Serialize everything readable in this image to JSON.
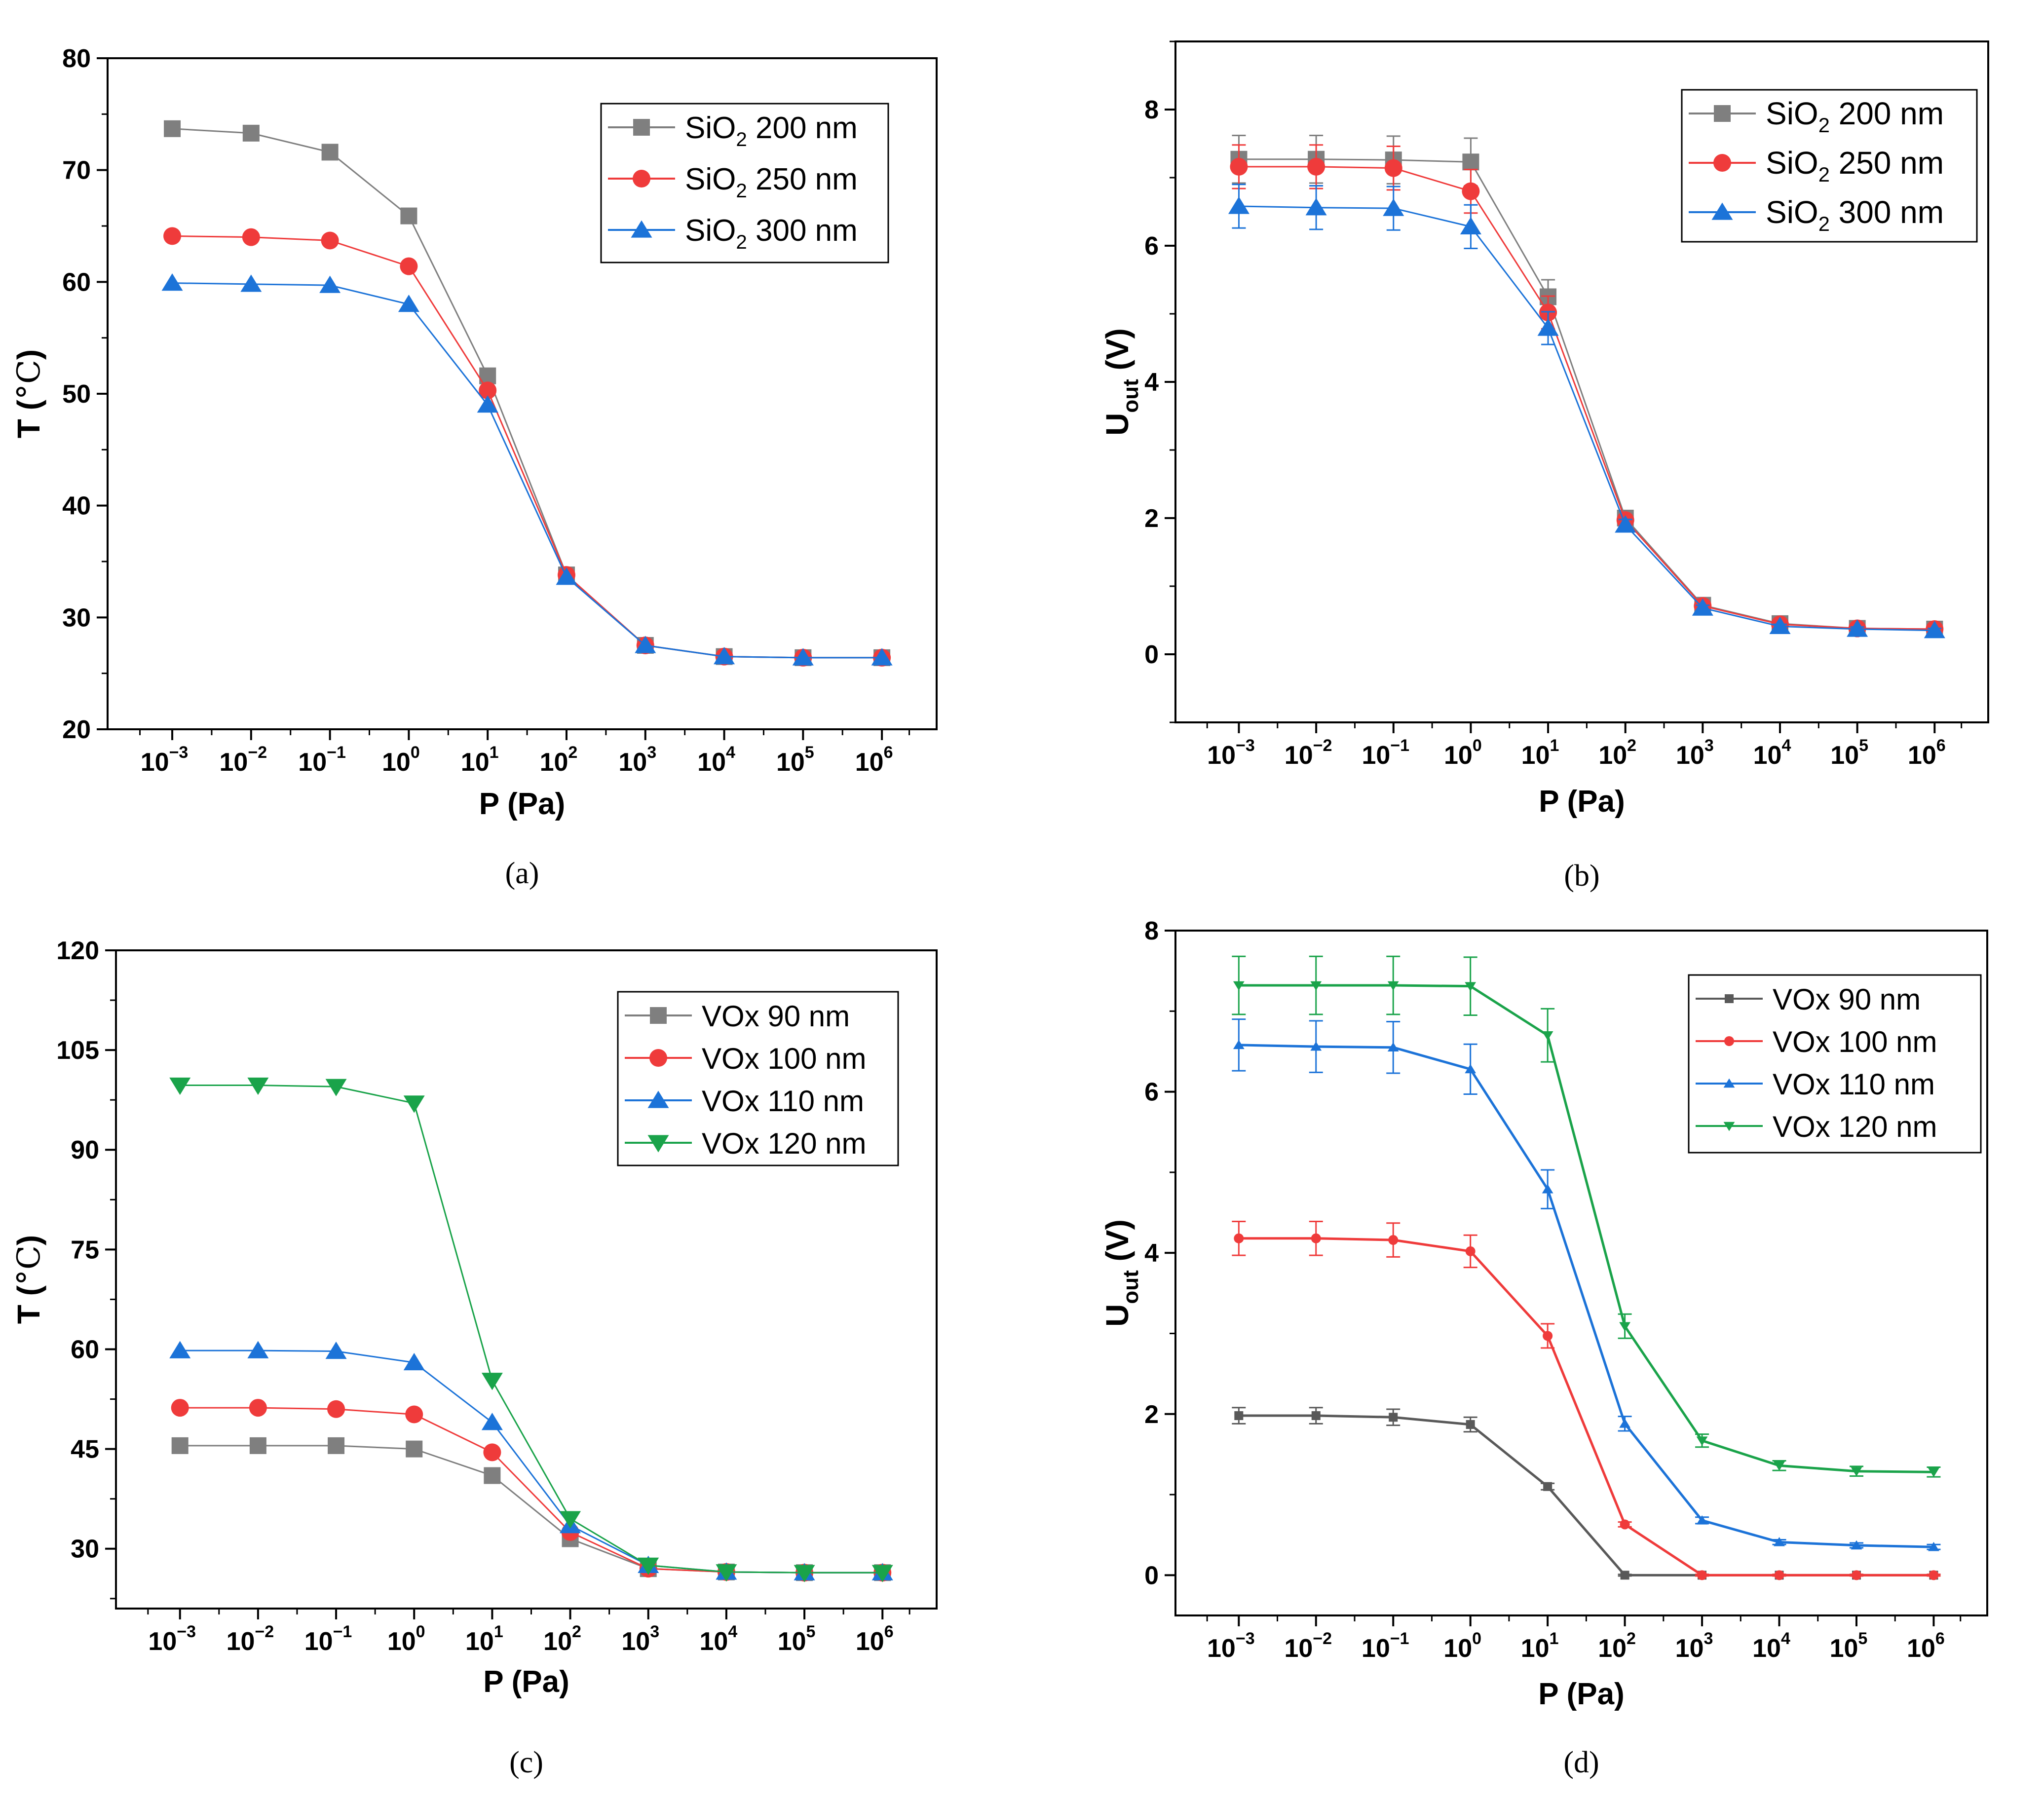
{
  "x_ticks": [
    "10",
    "10",
    "10",
    "10",
    "10",
    "10",
    "10",
    "10",
    "10",
    "10"
  ],
  "x_exponents": [
    "−3",
    "−2",
    "−1",
    "0",
    "1",
    "2",
    "3",
    "4",
    "5",
    "6"
  ],
  "chart_data": [
    {
      "id": "a",
      "type": "line",
      "caption": "(a)",
      "xlabel": "P (Pa)",
      "ylabel": "T (℃)",
      "ylabel_main": "T (",
      "ylabel_unit": "°C",
      "ylabel_close": ")",
      "ylim": [
        20,
        80
      ],
      "yticks": [
        20,
        30,
        40,
        50,
        60,
        70,
        80
      ],
      "x_log10": [
        -3,
        -2,
        -1,
        0,
        1,
        2,
        3,
        4,
        5,
        6
      ],
      "series": [
        {
          "name": "SiO2 200 nm",
          "label_main": "SiO",
          "label_sub": "2",
          "label_rest": " 200 nm",
          "color": "#7f7f7f",
          "marker": "square",
          "values": [
            73.7,
            73.3,
            71.6,
            65.9,
            51.6,
            33.8,
            27.5,
            26.5,
            26.4,
            26.4
          ]
        },
        {
          "name": "SiO2 250 nm",
          "label_main": "SiO",
          "label_sub": "2",
          "label_rest": " 250 nm",
          "color": "#ef3b3b",
          "marker": "circle",
          "values": [
            64.1,
            64.0,
            63.7,
            61.4,
            50.3,
            33.8,
            27.5,
            26.5,
            26.4,
            26.4
          ]
        },
        {
          "name": "SiO2 300 nm",
          "label_main": "SiO",
          "label_sub": "2",
          "label_rest": " 300 nm",
          "color": "#1c73d8",
          "marker": "triangle-up",
          "values": [
            59.9,
            59.8,
            59.7,
            58.0,
            49.0,
            33.6,
            27.5,
            26.5,
            26.4,
            26.4
          ]
        }
      ]
    },
    {
      "id": "b",
      "type": "line",
      "caption": "(b)",
      "xlabel": "P (Pa)",
      "ylabel": "Uout (V)",
      "ylabel_main": "U",
      "ylabel_sub": "out",
      "ylabel_rest": " (V)",
      "ylim": [
        -1,
        9
      ],
      "yticks": [
        0,
        2,
        4,
        6,
        8
      ],
      "x_log10": [
        -3,
        -2,
        -1,
        0,
        1,
        2,
        3,
        4,
        5,
        6
      ],
      "series": [
        {
          "name": "SiO2 200 nm",
          "label_main": "SiO",
          "label_sub": "2",
          "label_rest": " 200 nm",
          "color": "#7f7f7f",
          "marker": "square",
          "values": [
            7.27,
            7.27,
            7.26,
            7.23,
            5.25,
            2.0,
            0.72,
            0.45,
            0.38,
            0.37
          ],
          "errors": [
            0.35,
            0.35,
            0.35,
            0.35,
            0.25,
            0.08,
            0.04,
            0.03,
            0.03,
            0.03
          ]
        },
        {
          "name": "SiO2 250 nm",
          "label_main": "SiO",
          "label_sub": "2",
          "label_rest": " 250 nm",
          "color": "#ef3b3b",
          "marker": "circle",
          "values": [
            7.16,
            7.16,
            7.14,
            6.8,
            5.02,
            1.97,
            0.71,
            0.44,
            0.38,
            0.37
          ],
          "errors": [
            0.32,
            0.32,
            0.32,
            0.32,
            0.24,
            0.08,
            0.04,
            0.03,
            0.03,
            0.03
          ]
        },
        {
          "name": "SiO2 300 nm",
          "label_main": "SiO",
          "label_sub": "2",
          "label_rest": " 300 nm",
          "color": "#1c73d8",
          "marker": "triangle-up",
          "values": [
            6.58,
            6.56,
            6.55,
            6.28,
            4.79,
            1.9,
            0.68,
            0.41,
            0.37,
            0.35
          ],
          "errors": [
            0.32,
            0.32,
            0.32,
            0.32,
            0.24,
            0.08,
            0.04,
            0.03,
            0.03,
            0.03
          ]
        }
      ]
    },
    {
      "id": "c",
      "type": "line",
      "caption": "(c)",
      "xlabel": "P (Pa)",
      "ylabel": "T (℃)",
      "ylabel_main": "T (",
      "ylabel_unit": "°C",
      "ylabel_close": ")",
      "ylim": [
        21,
        120
      ],
      "yticks": [
        30,
        45,
        60,
        75,
        90,
        105,
        120
      ],
      "x_log10": [
        -3,
        -2,
        -1,
        0,
        1,
        2,
        3,
        4,
        5,
        6
      ],
      "series": [
        {
          "name": "VOx 90 nm",
          "label_main": "VOx 90 nm",
          "color": "#7f7f7f",
          "marker": "square",
          "values": [
            45.5,
            45.5,
            45.5,
            45.0,
            41.0,
            31.5,
            27.0,
            26.5,
            26.4,
            26.4
          ]
        },
        {
          "name": "VOx 100 nm",
          "label_main": "VOx 100 nm",
          "color": "#ef3b3b",
          "marker": "circle",
          "values": [
            51.2,
            51.2,
            51.0,
            50.2,
            44.5,
            32.5,
            27.0,
            26.5,
            26.4,
            26.4
          ]
        },
        {
          "name": "VOx 110 nm",
          "label_main": "VOx 110 nm",
          "color": "#1c73d8",
          "marker": "triangle-up",
          "values": [
            59.8,
            59.8,
            59.7,
            58.0,
            49.0,
            33.5,
            27.5,
            26.5,
            26.4,
            26.4
          ]
        },
        {
          "name": "VOx 120 nm",
          "label_main": "VOx 120 nm",
          "color": "#1aa34a",
          "marker": "triangle-down",
          "values": [
            99.7,
            99.7,
            99.5,
            97.0,
            55.3,
            34.5,
            27.5,
            26.5,
            26.4,
            26.4
          ]
        }
      ]
    },
    {
      "id": "d",
      "type": "line",
      "caption": "(d)",
      "xlabel": "P (Pa)",
      "ylabel": "Uout (V)",
      "ylabel_main": "U",
      "ylabel_sub": "out",
      "ylabel_rest": " (V)",
      "ylim": [
        -0.5,
        8
      ],
      "yticks": [
        0,
        2,
        4,
        6,
        8
      ],
      "x_log10": [
        -3,
        -2,
        -1,
        0,
        1,
        2,
        3,
        4,
        5,
        6
      ],
      "series": [
        {
          "name": "VOx 90 nm",
          "label_main": "VOx 90 nm",
          "color": "#595959",
          "marker": "small-square",
          "values": [
            1.98,
            1.98,
            1.96,
            1.87,
            1.1,
            0.0,
            0.0,
            0.0,
            0.0,
            0.0
          ],
          "errors": [
            0.1,
            0.1,
            0.1,
            0.09,
            0.04,
            0.01,
            0.01,
            0.01,
            0.01,
            0.01
          ]
        },
        {
          "name": "VOx 100 nm",
          "label_main": "VOx 100 nm",
          "color": "#ef3b3b",
          "marker": "small-circle",
          "values": [
            4.18,
            4.18,
            4.16,
            4.02,
            2.97,
            0.63,
            0.0,
            0.0,
            0.0,
            0.0
          ],
          "errors": [
            0.21,
            0.21,
            0.21,
            0.2,
            0.15,
            0.03,
            0.01,
            0.01,
            0.01,
            0.01
          ]
        },
        {
          "name": "VOx 110 nm",
          "label_main": "VOx 110 nm",
          "color": "#1c73d8",
          "marker": "small-triangle-up",
          "values": [
            6.58,
            6.56,
            6.55,
            6.28,
            4.79,
            1.88,
            0.68,
            0.41,
            0.37,
            0.35
          ],
          "errors": [
            0.32,
            0.32,
            0.32,
            0.31,
            0.24,
            0.09,
            0.04,
            0.03,
            0.03,
            0.03
          ]
        },
        {
          "name": "VOx 120 nm",
          "label_main": "VOx 120 nm",
          "color": "#1aa34a",
          "marker": "small-triangle-down",
          "values": [
            7.32,
            7.32,
            7.32,
            7.31,
            6.7,
            3.09,
            1.67,
            1.36,
            1.29,
            1.28
          ],
          "errors": [
            0.36,
            0.36,
            0.36,
            0.36,
            0.33,
            0.15,
            0.08,
            0.06,
            0.06,
            0.06
          ]
        }
      ]
    }
  ]
}
